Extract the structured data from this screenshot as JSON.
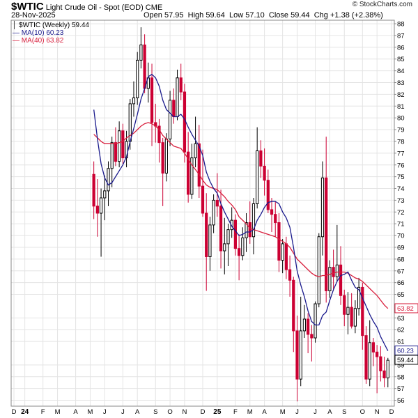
{
  "header": {
    "symbol": "$WTIC",
    "name": "Light Crude Oil - Spot (EOD)",
    "exchange": "CME",
    "date": "28-Nov-2025",
    "open_label": "Open",
    "open": "57.95",
    "high_label": "High",
    "high": "59.64",
    "low_label": "Low",
    "low": "57.10",
    "close_label": "Close",
    "close": "59.44",
    "chg_label": "Chg",
    "chg": "+1.38 (+2.38%)",
    "copyright": "© StockCharts.com"
  },
  "legend": {
    "price": "$WTIC (Weekly) 59.44",
    "ma10": "MA(10) 60.23",
    "ma40": "MA(40) 63.82"
  },
  "colors": {
    "up": "#000000",
    "down": "#cc0033",
    "ma10": "#1a1a8c",
    "ma40": "#d81e3c",
    "grid": "#e4e4e4"
  },
  "chart_data": {
    "type": "candlestick",
    "title": "$WTIC Light Crude Oil - Spot (EOD)",
    "period": "Weekly",
    "ylim": [
      55.5,
      88.3
    ],
    "y_ticks": [
      56,
      57,
      58,
      59,
      61,
      62,
      63,
      65,
      66,
      67,
      68,
      69,
      70,
      71,
      72,
      73,
      74,
      75,
      76,
      77,
      78,
      79,
      80,
      81,
      82,
      83,
      84,
      85,
      86,
      87,
      88
    ],
    "price_tags": {
      "ma40": "63.82",
      "ma10": "60.23",
      "last": "59.44"
    },
    "x_labels": [
      {
        "label": "D",
        "week": 0
      },
      {
        "label": "24",
        "week": 3,
        "bold": true
      },
      {
        "label": "F",
        "week": 8
      },
      {
        "label": "M",
        "week": 12
      },
      {
        "label": "A",
        "week": 17
      },
      {
        "label": "M",
        "week": 21
      },
      {
        "label": "J",
        "week": 25
      },
      {
        "label": "J",
        "week": 30
      },
      {
        "label": "A",
        "week": 34
      },
      {
        "label": "S",
        "week": 39
      },
      {
        "label": "O",
        "week": 43
      },
      {
        "label": "N",
        "week": 47
      },
      {
        "label": "D",
        "week": 52
      },
      {
        "label": "25",
        "week": 56,
        "bold": true
      },
      {
        "label": "F",
        "week": 61
      },
      {
        "label": "M",
        "week": 65
      },
      {
        "label": "A",
        "week": 69
      },
      {
        "label": "M",
        "week": 74
      },
      {
        "label": "J",
        "week": 78
      },
      {
        "label": "J",
        "week": 83
      },
      {
        "label": "A",
        "week": 87
      },
      {
        "label": "S",
        "week": 91
      },
      {
        "label": "O",
        "week": 96
      },
      {
        "label": "N",
        "week": 100
      },
      {
        "label": "D",
        "week": 104
      }
    ],
    "candles": [
      [
        75.2,
        76.3,
        71.4,
        72.5
      ],
      [
        72.5,
        74.8,
        69.9,
        71.9
      ],
      [
        71.9,
        74.0,
        68.2,
        73.2
      ],
      [
        73.2,
        75.1,
        71.3,
        73.8
      ],
      [
        73.8,
        76.3,
        72.5,
        75.7
      ],
      [
        75.7,
        78.4,
        74.1,
        77.9
      ],
      [
        77.9,
        79.2,
        75.9,
        76.3
      ],
      [
        76.3,
        79.7,
        75.8,
        78.9
      ],
      [
        78.9,
        79.5,
        76.1,
        76.6
      ],
      [
        76.6,
        78.9,
        75.8,
        78.0
      ],
      [
        78.0,
        81.6,
        77.3,
        81.2
      ],
      [
        81.2,
        83.1,
        80.1,
        81.7
      ],
      [
        81.7,
        85.6,
        81.1,
        84.9
      ],
      [
        84.9,
        87.7,
        84.2,
        86.2
      ],
      [
        86.2,
        87.1,
        82.1,
        82.5
      ],
      [
        82.5,
        84.7,
        81.3,
        83.4
      ],
      [
        83.4,
        84.6,
        77.6,
        79.6
      ],
      [
        79.6,
        81.2,
        77.9,
        79.3
      ],
      [
        79.3,
        79.9,
        76.2,
        77.9
      ],
      [
        77.9,
        78.3,
        72.5,
        75.3
      ],
      [
        75.3,
        78.7,
        74.6,
        78.2
      ],
      [
        78.2,
        82.3,
        77.6,
        81.5
      ],
      [
        81.5,
        82.5,
        79.5,
        80.1
      ],
      [
        80.1,
        84.1,
        79.8,
        83.4
      ],
      [
        83.4,
        84.6,
        81.5,
        82.2
      ],
      [
        82.2,
        82.9,
        76.2,
        77.1
      ],
      [
        77.1,
        78.8,
        72.8,
        73.5
      ],
      [
        73.5,
        77.8,
        73.1,
        76.6
      ],
      [
        76.6,
        80.1,
        75.8,
        77.8
      ],
      [
        77.8,
        79.4,
        73.2,
        74.2
      ],
      [
        74.2,
        77.3,
        71.6,
        71.9
      ],
      [
        71.9,
        73.6,
        65.3,
        68.2
      ],
      [
        68.2,
        71.6,
        67.0,
        70.9
      ],
      [
        70.9,
        73.5,
        70.2,
        73.0
      ],
      [
        73.0,
        75.3,
        71.6,
        72.5
      ],
      [
        72.5,
        73.9,
        67.2,
        68.7
      ],
      [
        68.7,
        71.5,
        66.7,
        69.3
      ],
      [
        69.3,
        71.0,
        67.4,
        70.5
      ],
      [
        70.5,
        72.4,
        69.8,
        71.3
      ],
      [
        71.3,
        71.8,
        68.3,
        68.9
      ],
      [
        68.9,
        70.1,
        66.2,
        68.3
      ],
      [
        68.3,
        70.7,
        67.9,
        69.8
      ],
      [
        69.8,
        71.9,
        68.6,
        71.1
      ],
      [
        71.1,
        72.9,
        69.3,
        69.9
      ],
      [
        69.9,
        73.2,
        68.4,
        72.7
      ],
      [
        72.7,
        79.2,
        72.3,
        77.2
      ],
      [
        77.2,
        78.1,
        74.9,
        75.9
      ],
      [
        75.9,
        77.4,
        73.4,
        74.7
      ],
      [
        74.7,
        75.6,
        71.9,
        72.2
      ],
      [
        72.2,
        73.2,
        70.3,
        71.8
      ],
      [
        71.8,
        72.9,
        69.9,
        71.1
      ],
      [
        71.1,
        71.9,
        66.9,
        67.9
      ],
      [
        67.9,
        69.7,
        66.8,
        69.3
      ],
      [
        69.3,
        69.9,
        66.3,
        67.1
      ],
      [
        67.1,
        68.3,
        64.8,
        66.2
      ],
      [
        66.2,
        66.5,
        60.1,
        61.9
      ],
      [
        61.9,
        63.2,
        55.9,
        57.8
      ],
      [
        57.8,
        64.8,
        57.2,
        61.9
      ],
      [
        61.9,
        64.1,
        61.3,
        62.9
      ],
      [
        62.9,
        63.4,
        60.0,
        61.6
      ],
      [
        61.6,
        62.4,
        59.3,
        61.3
      ],
      [
        61.3,
        64.4,
        60.9,
        64.2
      ],
      [
        64.2,
        70.2,
        63.9,
        69.9
      ],
      [
        69.9,
        76.3,
        68.3,
        74.9
      ],
      [
        74.9,
        78.4,
        64.3,
        65.3
      ],
      [
        65.3,
        67.9,
        64.7,
        67.3
      ],
      [
        67.3,
        68.8,
        65.3,
        66.5
      ],
      [
        66.5,
        70.9,
        66.1,
        67.5
      ],
      [
        67.5,
        69.1,
        64.1,
        64.9
      ],
      [
        64.9,
        65.4,
        62.3,
        63.3
      ],
      [
        63.3,
        65.2,
        61.6,
        63.9
      ],
      [
        63.9,
        65.1,
        62.1,
        62.3
      ],
      [
        62.3,
        64.5,
        61.7,
        63.8
      ],
      [
        63.8,
        66.4,
        63.2,
        65.6
      ],
      [
        65.6,
        66.0,
        60.3,
        61.5
      ],
      [
        61.5,
        62.3,
        57.4,
        57.8
      ],
      [
        57.8,
        62.8,
        57.2,
        60.9
      ],
      [
        60.9,
        61.3,
        58.9,
        60.1
      ],
      [
        60.1,
        60.7,
        56.6,
        59.7
      ],
      [
        59.7,
        60.6,
        57.6,
        58.5
      ],
      [
        58.5,
        59.7,
        57.1,
        57.9
      ],
      [
        57.9,
        59.6,
        57.1,
        59.4
      ]
    ],
    "ma10": [
      [
        0,
        80.7
      ],
      [
        1,
        78.2
      ],
      [
        2,
        76.1
      ],
      [
        3,
        74.9
      ],
      [
        4,
        74.3
      ],
      [
        5,
        74.5
      ],
      [
        6,
        75.0
      ],
      [
        7,
        75.5
      ],
      [
        8,
        76.0
      ],
      [
        9,
        76.7
      ],
      [
        10,
        78.0
      ],
      [
        11,
        79.1
      ],
      [
        12,
        80.3
      ],
      [
        13,
        81.6
      ],
      [
        14,
        82.5
      ],
      [
        15,
        83.5
      ],
      [
        16,
        83.7
      ],
      [
        17,
        83.4
      ],
      [
        18,
        82.7
      ],
      [
        19,
        81.5
      ],
      [
        20,
        80.7
      ],
      [
        21,
        80.4
      ],
      [
        22,
        80.1
      ],
      [
        23,
        80.1
      ],
      [
        24,
        80.3
      ],
      [
        25,
        79.9
      ],
      [
        26,
        79.2
      ],
      [
        27,
        78.6
      ],
      [
        28,
        78.1
      ],
      [
        29,
        77.6
      ],
      [
        30,
        76.8
      ],
      [
        31,
        75.4
      ],
      [
        32,
        74.6
      ],
      [
        33,
        74.0
      ],
      [
        34,
        73.6
      ],
      [
        35,
        72.7
      ],
      [
        36,
        72.0
      ],
      [
        37,
        71.4
      ],
      [
        38,
        70.8
      ],
      [
        39,
        70.4
      ],
      [
        40,
        70.0
      ],
      [
        41,
        70.1
      ],
      [
        42,
        70.3
      ],
      [
        43,
        70.3
      ],
      [
        44,
        70.5
      ],
      [
        45,
        71.3
      ],
      [
        46,
        71.8
      ],
      [
        47,
        72.4
      ],
      [
        48,
        72.8
      ],
      [
        49,
        72.9
      ],
      [
        50,
        72.9
      ],
      [
        51,
        72.7
      ],
      [
        52,
        72.0
      ],
      [
        53,
        71.5
      ],
      [
        54,
        70.7
      ],
      [
        55,
        69.0
      ],
      [
        56,
        67.0
      ],
      [
        57,
        65.8
      ],
      [
        58,
        64.8
      ],
      [
        59,
        63.6
      ],
      [
        60,
        62.7
      ],
      [
        61,
        62.4
      ],
      [
        62,
        62.4
      ],
      [
        63,
        63.2
      ],
      [
        64,
        63.5
      ],
      [
        65,
        64.5
      ],
      [
        66,
        65.4
      ],
      [
        67,
        66.1
      ],
      [
        68,
        66.6
      ],
      [
        69,
        66.7
      ],
      [
        70,
        66.9
      ],
      [
        71,
        66.2
      ],
      [
        72,
        65.6
      ],
      [
        73,
        65.4
      ],
      [
        74,
        64.7
      ],
      [
        75,
        64.0
      ],
      [
        76,
        63.3
      ],
      [
        77,
        62.7
      ],
      [
        78,
        62.2
      ],
      [
        79,
        61.4
      ],
      [
        80,
        60.8
      ],
      [
        81,
        60.2
      ]
    ],
    "ma40": [
      [
        0,
        78.6
      ],
      [
        1,
        78.3
      ],
      [
        2,
        78.0
      ],
      [
        3,
        77.8
      ],
      [
        4,
        77.8
      ],
      [
        5,
        77.8
      ],
      [
        6,
        77.8
      ],
      [
        7,
        77.9
      ],
      [
        8,
        78.0
      ],
      [
        9,
        78.3
      ],
      [
        10,
        78.5
      ],
      [
        11,
        78.7
      ],
      [
        12,
        79.0
      ],
      [
        13,
        79.3
      ],
      [
        14,
        79.5
      ],
      [
        15,
        79.6
      ],
      [
        16,
        79.5
      ],
      [
        17,
        79.3
      ],
      [
        18,
        79.0
      ],
      [
        19,
        78.5
      ],
      [
        20,
        78.2
      ],
      [
        21,
        77.9
      ],
      [
        22,
        77.6
      ],
      [
        23,
        77.5
      ],
      [
        24,
        77.4
      ],
      [
        25,
        77.0
      ],
      [
        26,
        76.5
      ],
      [
        27,
        76.0
      ],
      [
        28,
        75.6
      ],
      [
        29,
        75.2
      ],
      [
        30,
        74.7
      ],
      [
        31,
        74.3
      ],
      [
        32,
        74.1
      ],
      [
        33,
        74.0
      ],
      [
        34,
        73.9
      ],
      [
        35,
        73.6
      ],
      [
        36,
        73.3
      ],
      [
        37,
        72.9
      ],
      [
        38,
        72.6
      ],
      [
        39,
        72.2
      ],
      [
        40,
        71.6
      ],
      [
        41,
        71.3
      ],
      [
        42,
        71.0
      ],
      [
        43,
        70.6
      ],
      [
        44,
        70.5
      ],
      [
        45,
        70.4
      ],
      [
        46,
        70.3
      ],
      [
        47,
        70.2
      ],
      [
        48,
        70.1
      ],
      [
        49,
        70.0
      ],
      [
        50,
        69.9
      ],
      [
        51,
        69.7
      ],
      [
        52,
        69.5
      ],
      [
        53,
        69.3
      ],
      [
        54,
        69.0
      ],
      [
        55,
        68.5
      ],
      [
        56,
        68.0
      ],
      [
        57,
        67.7
      ],
      [
        58,
        67.4
      ],
      [
        59,
        67.1
      ],
      [
        60,
        66.8
      ],
      [
        61,
        66.6
      ],
      [
        62,
        66.5
      ],
      [
        63,
        66.6
      ],
      [
        64,
        66.6
      ],
      [
        65,
        66.7
      ],
      [
        66,
        66.8
      ],
      [
        67,
        66.9
      ],
      [
        68,
        66.9
      ],
      [
        69,
        66.9
      ],
      [
        70,
        66.8
      ],
      [
        71,
        66.6
      ],
      [
        72,
        66.4
      ],
      [
        73,
        66.3
      ],
      [
        74,
        66.1
      ],
      [
        75,
        65.8
      ],
      [
        76,
        65.5
      ],
      [
        77,
        65.2
      ],
      [
        78,
        64.9
      ],
      [
        79,
        64.5
      ],
      [
        80,
        64.1
      ],
      [
        81,
        63.8
      ]
    ]
  }
}
